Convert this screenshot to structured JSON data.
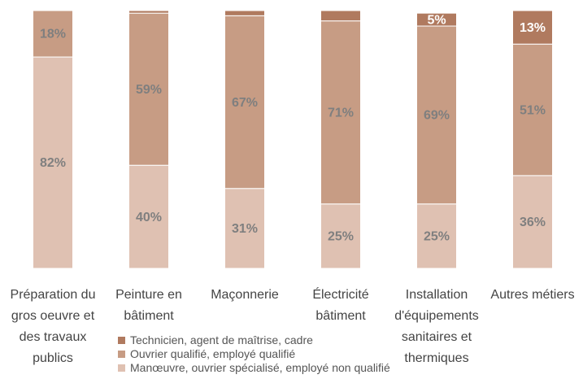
{
  "chart_data": {
    "type": "stacked-bar",
    "categories": [
      "Préparation du gros oeuvre et des travaux publics",
      "Peinture en bâtiment",
      "Maçonnerie",
      "Électricité bâtiment",
      "Installation d'équipements sanitaires et thermiques",
      "Autres métiers"
    ],
    "series": [
      {
        "name": "Manœuvre, ouvrier spécialisé, employé non qualifié",
        "color": "#dfc1b2",
        "values": [
          82,
          40,
          31,
          25,
          25,
          36
        ],
        "value_labels": [
          "82%",
          "40%",
          "31%",
          "25%",
          "25%",
          "36%"
        ]
      },
      {
        "name": "Ouvrier qualifié, employé qualifié",
        "color": "#c79c84",
        "values": [
          18,
          59,
          67,
          71,
          69,
          51
        ],
        "value_labels": [
          "18%",
          "59%",
          "67%",
          "71%",
          "69%",
          "51%"
        ]
      },
      {
        "name": "Technicien, agent de maîtrise, cadre",
        "color": "#b07a5f",
        "values": [
          0,
          1,
          2,
          4,
          5,
          13
        ],
        "value_labels": [
          null,
          null,
          null,
          null,
          "5%",
          "13%"
        ]
      }
    ],
    "ylim": [
      0,
      100
    ]
  }
}
